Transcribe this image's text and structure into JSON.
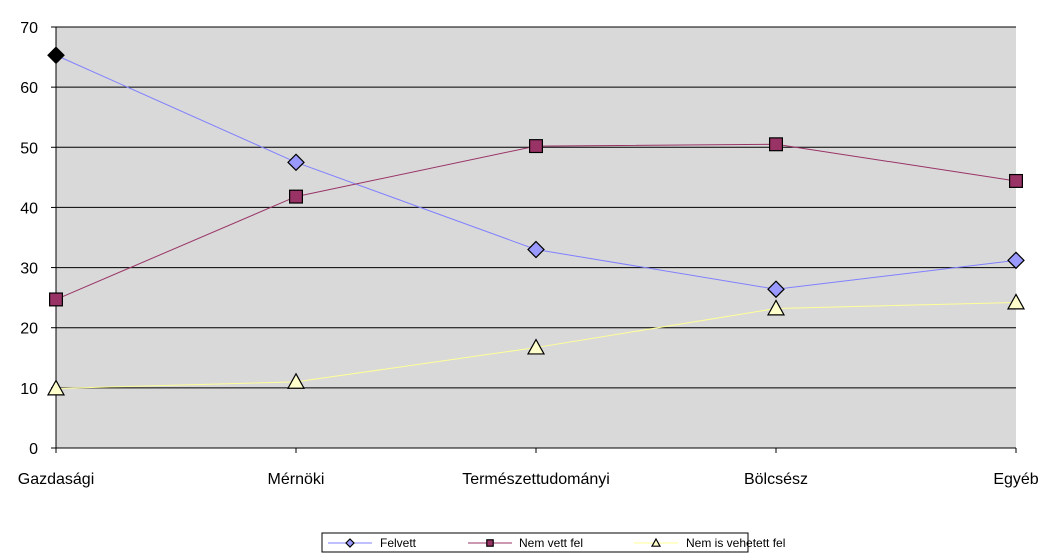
{
  "chart_data": {
    "type": "line",
    "categories": [
      "Gazdasági",
      "Mérnöki",
      "Természettudományi",
      "Bölcsész",
      "Egyéb"
    ],
    "series": [
      {
        "name": "Felvett",
        "values": [
          65.3,
          47.5,
          33.0,
          26.4,
          31.2
        ],
        "color": "#8080ff",
        "fill": "#9999ff",
        "marker": "diamond"
      },
      {
        "name": "Nem vett fel",
        "values": [
          24.7,
          41.8,
          50.2,
          50.5,
          44.4
        ],
        "color": "#993366",
        "fill": "#993366",
        "marker": "square"
      },
      {
        "name": "Nem is vehetett fel",
        "values": [
          9.9,
          11.0,
          16.7,
          23.2,
          24.2
        ],
        "color": "#ffff99",
        "fill": "#ffffcc",
        "marker": "triangle"
      }
    ],
    "ylim": [
      0,
      70
    ],
    "yticks": [
      0,
      10,
      20,
      30,
      40,
      50,
      60,
      70
    ],
    "grid": true,
    "plot_background": "#d9d9d9",
    "legend_position": "bottom"
  }
}
